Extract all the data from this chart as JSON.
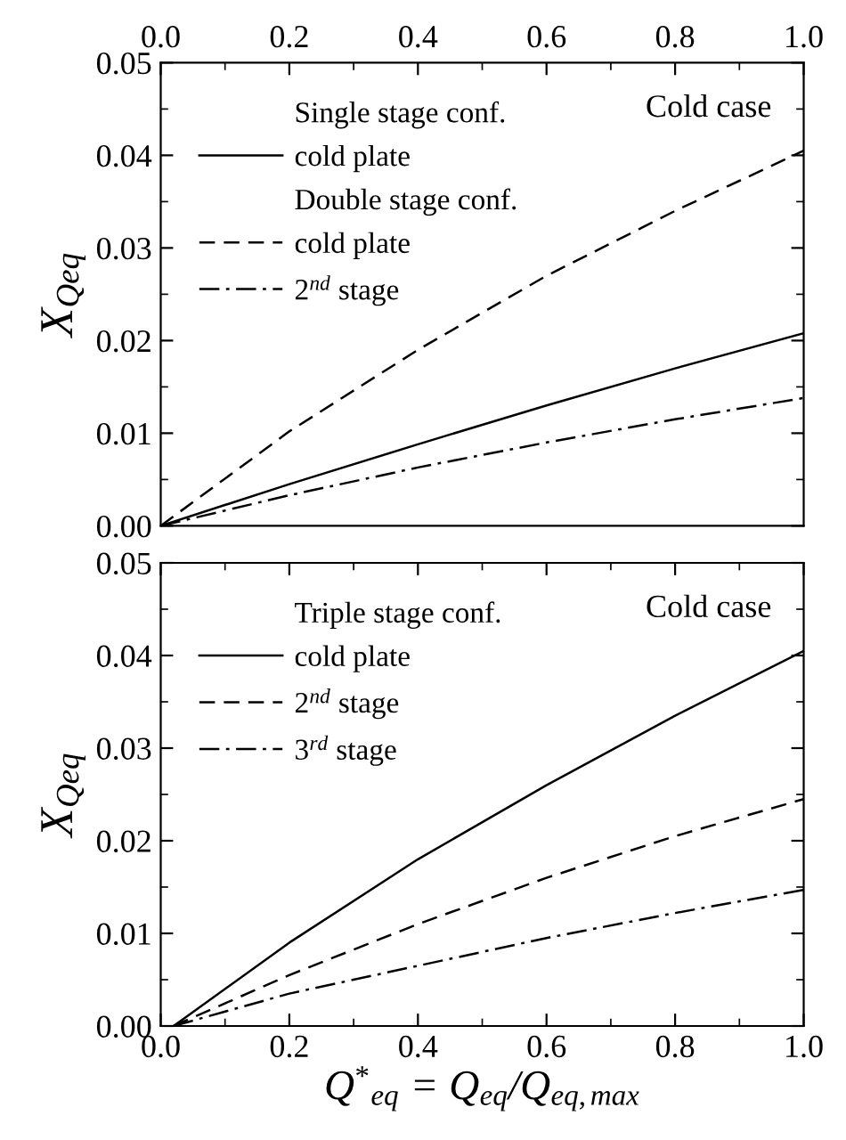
{
  "chart_data": [
    {
      "type": "line",
      "ylabel": "X$_{Qeq}$",
      "annotations": [
        "Single stage conf.",
        "Double stage conf.",
        "Cold case"
      ],
      "legend": "top left",
      "tick_labels": "y",
      "x": [
        0.0,
        0.2,
        0.4,
        0.6,
        0.8,
        1.0
      ],
      "x2lim": [
        0.0,
        1.0
      ],
      "x2ticks": [
        {
          "value": 0.0,
          "label": "0.0"
        },
        {
          "value": 0.1,
          "label": null
        },
        0.2,
        {
          "value": 0.3,
          "label": null
        },
        0.4,
        {
          "value": 0.5,
          "label": null
        },
        0.6,
        {
          "value": 0.7,
          "label": null
        },
        0.8,
        {
          "value": 0.9,
          "label": null
        },
        {
          "value": 1.0,
          "label": "1.0"
        }
      ],
      "ylim": [
        0.0,
        0.05
      ],
      "yticks": [
        {
          "value": 0.0,
          "label": "0.00"
        },
        {
          "value": 0.005,
          "label": null
        },
        0.01,
        {
          "value": 0.015,
          "label": null
        },
        0.02,
        {
          "value": 0.025,
          "label": null
        },
        0.03,
        {
          "value": 0.035,
          "label": null
        },
        0.04,
        {
          "value": 0.045,
          "label": null
        },
        0.05
      ],
      "series": [
        {
          "name": "cold plate",
          "color": "#000000",
          "line_style": "solid",
          "values": [
            0.0,
            0.0045,
            0.0088,
            0.013,
            0.017,
            0.0208
          ]
        },
        {
          "name": "cold plate",
          "color": "#000000",
          "line_style": "dashed",
          "values": [
            0.0,
            0.0102,
            0.019,
            0.027,
            0.034,
            0.0405
          ]
        },
        {
          "name": "2$^{nd}$ stage",
          "color": "#000000",
          "line_style": "dashdot",
          "values": [
            0.0,
            0.0033,
            0.0063,
            0.009,
            0.0115,
            0.0138
          ]
        }
      ]
    },
    {
      "type": "line",
      "xlabel": "Q$^{*}$$_{eq}$ = Q$_{eq}$/Q$_{eq,max}$",
      "ylabel": "X$_{Qeq}$",
      "annotations": [
        "Triple stage conf.",
        "Cold case"
      ],
      "legend": "top left",
      "x": [
        0.02,
        0.2,
        0.4,
        0.6,
        0.8,
        1.0
      ],
      "xlim": [
        0.0,
        1.0
      ],
      "xticks": [
        {
          "value": 0.0,
          "label": "0.0"
        },
        {
          "value": 0.1,
          "label": null
        },
        0.2,
        {
          "value": 0.3,
          "label": null
        },
        0.4,
        {
          "value": 0.5,
          "label": null
        },
        0.6,
        {
          "value": 0.7,
          "label": null
        },
        0.8,
        {
          "value": 0.9,
          "label": null
        },
        {
          "value": 1.0,
          "label": "1.0"
        }
      ],
      "ylim": [
        0.0,
        0.05
      ],
      "yticks": [
        {
          "value": 0.0,
          "label": "0.00"
        },
        {
          "value": 0.005,
          "label": null
        },
        0.01,
        {
          "value": 0.015,
          "label": null
        },
        0.02,
        {
          "value": 0.025,
          "label": null
        },
        0.03,
        {
          "value": 0.035,
          "label": null
        },
        0.04,
        {
          "value": 0.045,
          "label": null
        },
        0.05
      ],
      "series": [
        {
          "name": "cold plate",
          "color": "#000000",
          "line_style": "solid",
          "values": [
            0.0,
            0.009,
            0.018,
            0.026,
            0.0335,
            0.0405
          ]
        },
        {
          "name": "2$^{nd}$ stage",
          "color": "#000000",
          "line_style": "dashed",
          "values": [
            0.0,
            0.0055,
            0.011,
            0.016,
            0.0205,
            0.0245
          ]
        },
        {
          "name": "3$^{rd}$ stage",
          "color": "#000000",
          "line_style": "dashdot",
          "values": [
            0.0,
            0.0035,
            0.0065,
            0.0095,
            0.0122,
            0.0147
          ]
        }
      ]
    }
  ]
}
